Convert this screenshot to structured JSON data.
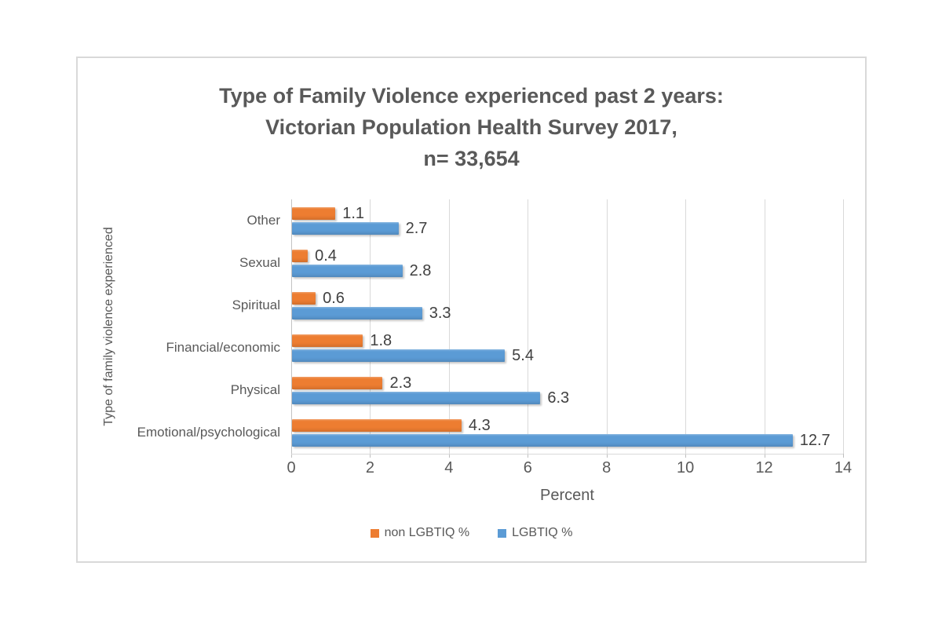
{
  "chart_data": {
    "type": "bar",
    "orientation": "horizontal",
    "title": "Type of Family Violence experienced past 2 years: Victorian Population Health Survey 2017, n= 33,654",
    "title_lines": [
      "Type of Family Violence experienced past 2 years:",
      "Victorian Population Health Survey 2017,",
      "n= 33,654"
    ],
    "categories": [
      "Other",
      "Sexual",
      "Spiritual",
      "Financial/economic",
      "Physical",
      "Emotional/psychological"
    ],
    "series": [
      {
        "name": "non LGBTIQ %",
        "color": "#ED7D31",
        "values": [
          1.1,
          0.4,
          0.6,
          1.8,
          2.3,
          4.3
        ]
      },
      {
        "name": "LGBTIQ %",
        "color": "#5B9BD5",
        "values": [
          2.7,
          2.8,
          3.3,
          5.4,
          6.3,
          12.7
        ]
      }
    ],
    "xlabel": "Percent",
    "ylabel": "Type of family violence experienced",
    "xlim": [
      0,
      14
    ],
    "xticks": [
      0,
      2,
      4,
      6,
      8,
      10,
      12,
      14
    ],
    "grid": true,
    "legend_position": "bottom",
    "value_labels": true
  },
  "styles": {
    "text_color": "#595959",
    "value_label_color": "#404040",
    "gridline_color": "#d9d9d9",
    "border_color": "#d9d9d9"
  }
}
